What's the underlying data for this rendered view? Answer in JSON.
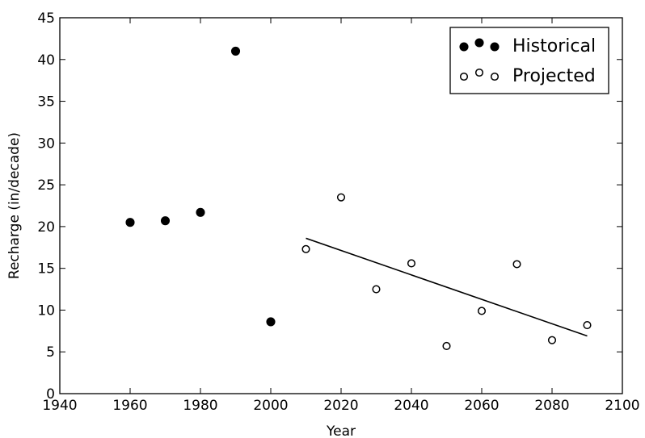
{
  "chart_data": {
    "type": "scatter",
    "title": "",
    "xlabel": "Year",
    "ylabel": "Recharge (in/decade)",
    "xlim": [
      1940,
      2100
    ],
    "ylim": [
      0,
      45
    ],
    "xticks": [
      1940,
      1960,
      1980,
      2000,
      2020,
      2040,
      2060,
      2080,
      2100
    ],
    "yticks": [
      0,
      5,
      10,
      15,
      20,
      25,
      30,
      35,
      40,
      45
    ],
    "grid": false,
    "legend_position": "top-right",
    "series": [
      {
        "name": "Historical",
        "marker": "filled-circle",
        "color": "#000000",
        "x": [
          1960,
          1970,
          1980,
          1990,
          2000
        ],
        "y": [
          20.5,
          20.7,
          21.7,
          41.0,
          8.6
        ]
      },
      {
        "name": "Projected",
        "marker": "open-circle",
        "color": "#000000",
        "x": [
          2010,
          2020,
          2030,
          2040,
          2050,
          2060,
          2070,
          2080,
          2090
        ],
        "y": [
          17.3,
          23.5,
          12.5,
          15.6,
          5.7,
          9.9,
          15.5,
          6.4,
          8.2
        ]
      }
    ],
    "trend_line": {
      "x": [
        2010,
        2090
      ],
      "y": [
        18.6,
        6.9
      ],
      "color": "#000000"
    }
  }
}
